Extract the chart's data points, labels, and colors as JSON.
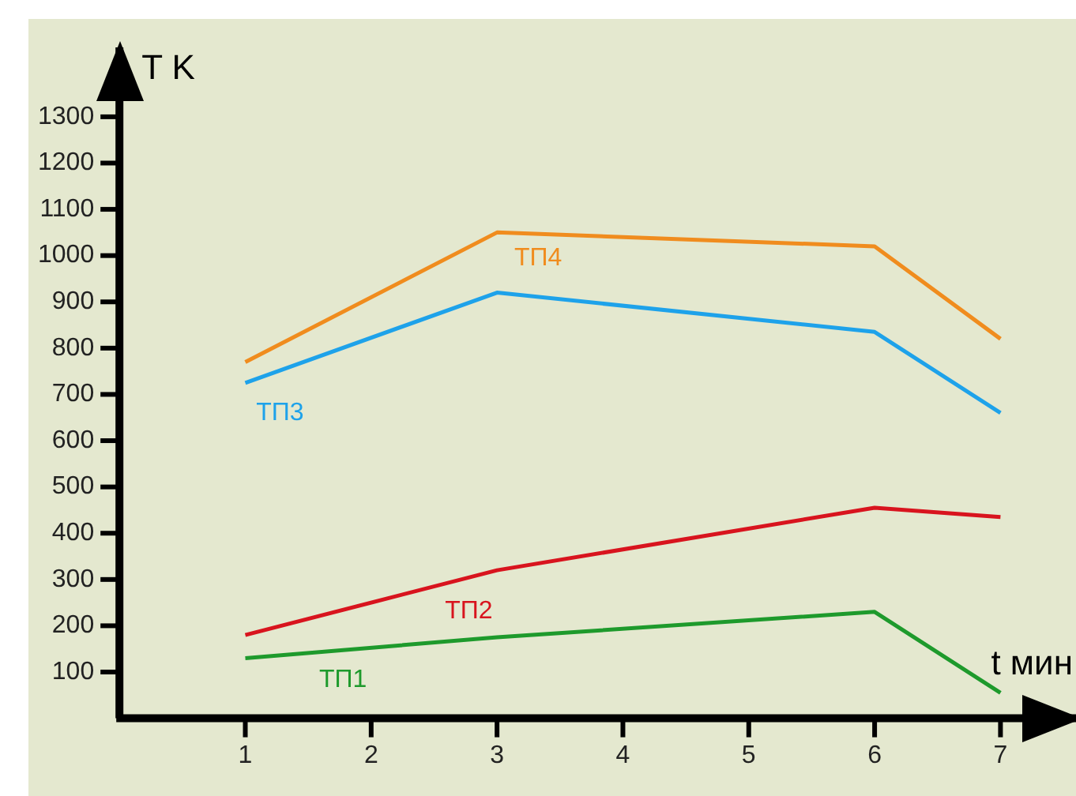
{
  "chart_data": {
    "type": "line",
    "xlabel": "t мин",
    "ylabel": "T K",
    "x": [
      1,
      3,
      6,
      7
    ],
    "xlim": [
      0,
      7.6
    ],
    "xticks": [
      1,
      2,
      3,
      4,
      5,
      6,
      7
    ],
    "ylim": [
      0,
      1450
    ],
    "yticks": [
      100,
      200,
      300,
      400,
      500,
      600,
      700,
      800,
      900,
      1000,
      1100,
      1200,
      1300
    ],
    "grid": false,
    "legend": false,
    "marker": "none",
    "line_style": "solid",
    "series": [
      {
        "name": "ТП1",
        "color": "#1e9a2c",
        "values": [
          130,
          175,
          230,
          55
        ]
      },
      {
        "name": "ТП2",
        "color": "#d8141e",
        "values": [
          180,
          320,
          455,
          435
        ]
      },
      {
        "name": "ТП3",
        "color": "#1ea2ea",
        "values": [
          725,
          920,
          835,
          660
        ]
      },
      {
        "name": "ТП4",
        "color": "#f08c1e",
        "values": [
          770,
          1050,
          1020,
          820
        ]
      }
    ]
  }
}
